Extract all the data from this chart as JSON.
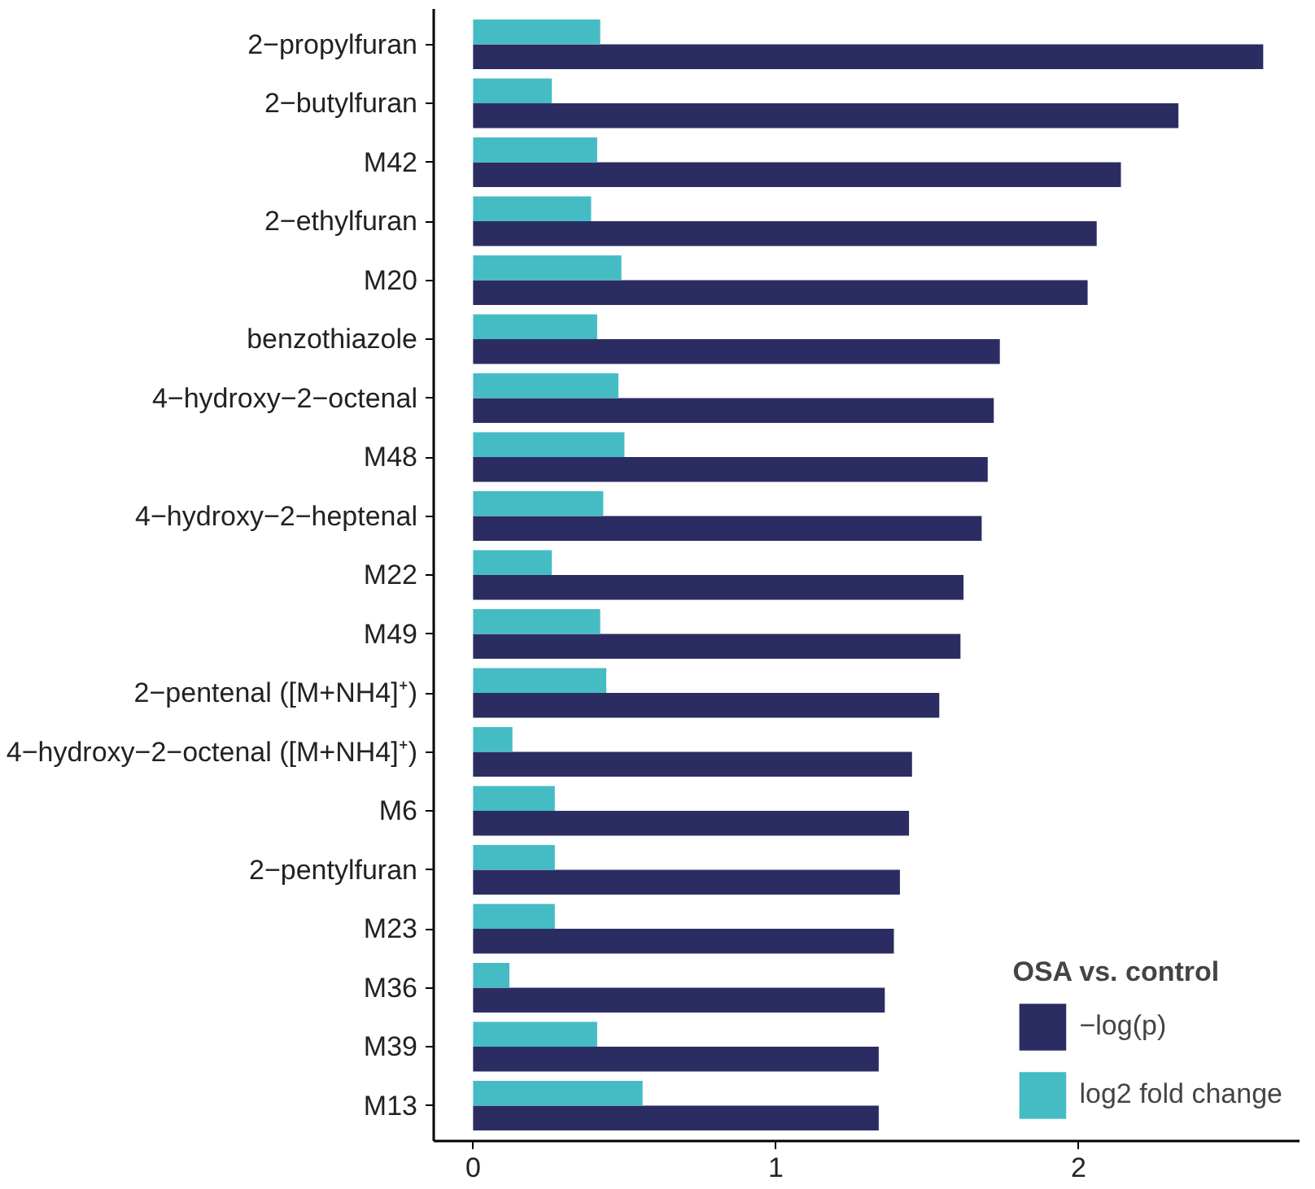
{
  "chart_data": {
    "type": "bar",
    "orientation": "horizontal",
    "legend_title": "OSA vs. control",
    "legend": "bottom right",
    "grid": false,
    "categories": [
      "2−propylfuran",
      "2−butylfuran",
      "M42",
      "2−ethylfuran",
      "M20",
      "benzothiazole",
      "4−hydroxy−2−octenal",
      "M48",
      "4−hydroxy−2−heptenal",
      "M22",
      "M49",
      "2−pentenal ([M+NH4]⁺)",
      "4−hydroxy−2−octenal ([M+NH4]⁺)",
      "M6",
      "2−pentylfuran",
      "M23",
      "M36",
      "M39",
      "M13"
    ],
    "series": [
      {
        "name": "−log(p)",
        "color": "#2b2d62",
        "values": [
          2.61,
          2.33,
          2.14,
          2.06,
          2.03,
          1.74,
          1.72,
          1.7,
          1.68,
          1.62,
          1.61,
          1.54,
          1.45,
          1.44,
          1.41,
          1.39,
          1.36,
          1.34,
          1.34
        ]
      },
      {
        "name": "log2 fold change",
        "color": "#45bcc4",
        "values": [
          0.42,
          0.26,
          0.41,
          0.39,
          0.49,
          0.41,
          0.48,
          0.5,
          0.43,
          0.26,
          0.42,
          0.44,
          0.13,
          0.27,
          0.27,
          0.27,
          0.12,
          0.41,
          0.56
        ]
      }
    ],
    "xlim": [
      -0.13,
      2.73
    ],
    "xticks": [
      0,
      1,
      2
    ]
  }
}
